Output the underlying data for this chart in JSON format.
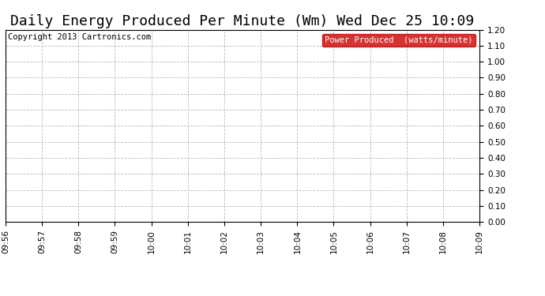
{
  "title": "Daily Energy Produced Per Minute (Wm) Wed Dec 25 10:09",
  "copyright_text": "Copyright 2013 Cartronics.com",
  "legend_label": "Power Produced  (watts/minute)",
  "legend_bg_color": "#cc0000",
  "legend_text_color": "#ffffff",
  "x_ticks": [
    "09:56",
    "09:57",
    "09:58",
    "09:59",
    "10:00",
    "10:01",
    "10:02",
    "10:03",
    "10:04",
    "10:05",
    "10:06",
    "10:07",
    "10:08",
    "10:09"
  ],
  "y_ticks": [
    0.0,
    0.1,
    0.2,
    0.3,
    0.4,
    0.5,
    0.6,
    0.7,
    0.8,
    0.9,
    1.0,
    1.1,
    1.2
  ],
  "ylim": [
    0.0,
    1.2
  ],
  "bg_color": "#ffffff",
  "plot_bg_color": "#ffffff",
  "grid_color": "#bbbbbb",
  "title_fontsize": 13,
  "tick_fontsize": 7.5,
  "copyright_fontsize": 7.5
}
